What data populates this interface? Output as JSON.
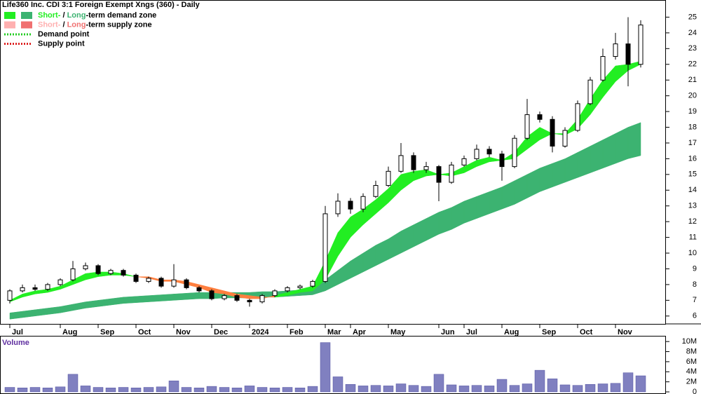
{
  "chart_data": {
    "type": "candlestick",
    "title": "Life360 Inc. CDI 3:1 Foreign Exempt Xngs (360) - Daily",
    "legend": [
      {
        "short": "Short-",
        "sep": " / ",
        "long": "Long",
        "rest": "-term demand zone",
        "colors": [
          "#22ee22",
          "#3cb371"
        ]
      },
      {
        "short": "Short-",
        "sep": " / ",
        "long": "Long",
        "rest": "-term supply zone",
        "colors": [
          "#ffb0b0",
          "#f07070"
        ]
      },
      {
        "label": "Demand point",
        "color": "#22cc22"
      },
      {
        "label": "Supply point",
        "color": "#dd2222"
      }
    ],
    "categories": [
      "Jul",
      null,
      null,
      null,
      "Aug",
      null,
      null,
      "Sep",
      null,
      null,
      "Oct",
      null,
      null,
      "Nov",
      null,
      null,
      "Dec",
      null,
      null,
      "2024",
      null,
      null,
      "Feb",
      null,
      null,
      "Mar",
      null,
      "Apr",
      null,
      null,
      "May",
      null,
      null,
      null,
      "Jun",
      null,
      "Jul",
      null,
      null,
      "Aug",
      null,
      null,
      "Sep",
      null,
      null,
      "Oct",
      null,
      null,
      "Nov",
      null,
      null
    ],
    "open": [
      7.0,
      7.6,
      7.8,
      7.7,
      8.0,
      8.3,
      9.0,
      9.2,
      8.7,
      8.9,
      8.6,
      8.2,
      8.4,
      7.9,
      8.3,
      7.8,
      7.6,
      7.1,
      7.3,
      7.0,
      6.9,
      7.3,
      7.6,
      7.8,
      7.9,
      8.2,
      12.5,
      13.3,
      12.8,
      13.6,
      14.3,
      15.2,
      16.2,
      15.3,
      15.5,
      14.5,
      15.6,
      16.0,
      16.6,
      16.3,
      15.5,
      17.3,
      18.8,
      18.5,
      16.8,
      17.8,
      19.5,
      21.0,
      22.5,
      23.3,
      22.0
    ],
    "high": [
      7.7,
      8.0,
      8.0,
      8.1,
      8.4,
      9.5,
      9.4,
      9.3,
      9.0,
      9.0,
      8.7,
      8.5,
      8.5,
      9.3,
      8.4,
      7.9,
      7.7,
      7.4,
      7.4,
      7.1,
      7.4,
      7.7,
      7.9,
      8.0,
      8.3,
      13.0,
      13.8,
      13.5,
      13.8,
      14.6,
      15.5,
      17.0,
      16.4,
      15.8,
      15.6,
      15.8,
      16.2,
      16.9,
      16.8,
      16.5,
      17.5,
      19.8,
      19.0,
      18.7,
      18.0,
      19.7,
      21.2,
      23.0,
      24.0,
      25.0,
      24.8
    ],
    "low": [
      6.8,
      7.5,
      7.6,
      7.6,
      7.9,
      8.2,
      8.9,
      8.6,
      8.6,
      8.5,
      8.1,
      8.1,
      7.8,
      7.8,
      7.7,
      7.5,
      7.0,
      7.0,
      6.9,
      6.6,
      6.8,
      7.2,
      7.5,
      7.7,
      7.8,
      8.1,
      12.3,
      12.5,
      12.6,
      13.5,
      14.2,
      15.1,
      15.1,
      15.1,
      13.3,
      14.4,
      15.5,
      15.9,
      16.1,
      14.6,
      15.4,
      17.2,
      18.3,
      16.4,
      16.7,
      17.7,
      19.4,
      20.9,
      22.3,
      20.6,
      21.8
    ],
    "close": [
      7.6,
      7.8,
      7.7,
      8.0,
      8.3,
      9.0,
      9.2,
      8.7,
      8.9,
      8.6,
      8.2,
      8.4,
      7.9,
      8.3,
      7.8,
      7.6,
      7.1,
      7.3,
      7.0,
      6.9,
      7.3,
      7.6,
      7.8,
      7.9,
      8.2,
      12.5,
      13.3,
      12.8,
      13.6,
      14.3,
      15.2,
      16.2,
      15.3,
      15.5,
      14.5,
      15.6,
      16.0,
      16.6,
      16.3,
      15.5,
      17.3,
      18.8,
      18.5,
      16.8,
      17.8,
      19.5,
      21.0,
      22.5,
      23.3,
      22.0,
      24.5
    ],
    "short_fast": [
      7.0,
      7.4,
      7.6,
      7.7,
      7.9,
      8.3,
      8.7,
      8.8,
      8.8,
      8.7,
      8.5,
      8.4,
      8.2,
      8.2,
      8.0,
      7.8,
      7.5,
      7.4,
      7.2,
      7.1,
      7.1,
      7.3,
      7.5,
      7.7,
      7.9,
      9.5,
      11.3,
      12.3,
      12.8,
      13.4,
      14.1,
      15.0,
      15.2,
      15.3,
      15.0,
      15.1,
      15.5,
      15.9,
      16.1,
      15.9,
      16.4,
      17.4,
      18.0,
      17.6,
      17.6,
      18.5,
      19.8,
      21.0,
      21.9,
      22.0,
      22.2
    ],
    "short_slow": [
      6.9,
      7.2,
      7.4,
      7.5,
      7.7,
      8.0,
      8.3,
      8.5,
      8.6,
      8.6,
      8.5,
      8.5,
      8.3,
      8.3,
      8.2,
      8.0,
      7.8,
      7.6,
      7.4,
      7.3,
      7.2,
      7.2,
      7.3,
      7.5,
      7.6,
      8.3,
      9.8,
      11.0,
      11.8,
      12.5,
      13.2,
      14.0,
      14.6,
      14.9,
      15.0,
      14.9,
      15.1,
      15.5,
      15.8,
      15.9,
      16.0,
      16.6,
      17.2,
      17.6,
      17.5,
      17.9,
      18.8,
      19.9,
      20.9,
      21.6,
      22.0
    ],
    "long_upper": [
      6.2,
      6.3,
      6.4,
      6.5,
      6.6,
      6.75,
      6.9,
      7.0,
      7.1,
      7.2,
      7.25,
      7.3,
      7.35,
      7.4,
      7.45,
      7.5,
      7.5,
      7.5,
      7.5,
      7.5,
      7.55,
      7.55,
      7.6,
      7.65,
      7.75,
      8.3,
      8.9,
      9.5,
      10.0,
      10.5,
      10.9,
      11.4,
      11.8,
      12.2,
      12.6,
      12.9,
      13.3,
      13.6,
      13.9,
      14.2,
      14.6,
      15.0,
      15.4,
      15.7,
      16.0,
      16.4,
      16.8,
      17.2,
      17.6,
      18.0,
      18.3
    ],
    "long_lower": [
      5.8,
      5.9,
      6.0,
      6.1,
      6.2,
      6.35,
      6.5,
      6.6,
      6.7,
      6.8,
      6.85,
      6.9,
      6.95,
      7.0,
      7.05,
      7.1,
      7.1,
      7.15,
      7.15,
      7.15,
      7.2,
      7.2,
      7.25,
      7.3,
      7.35,
      7.6,
      8.0,
      8.4,
      8.8,
      9.2,
      9.6,
      10.0,
      10.4,
      10.8,
      11.2,
      11.5,
      11.9,
      12.2,
      12.5,
      12.8,
      13.1,
      13.5,
      13.9,
      14.2,
      14.5,
      14.8,
      15.1,
      15.4,
      15.7,
      16.0,
      16.2
    ],
    "zone_colors": {
      "demand": "#22ee22",
      "supply": "#ff7f3f",
      "long": "#3cb371"
    },
    "ylim": [
      5.5,
      26
    ],
    "yticks": [
      6,
      7,
      8,
      9,
      10,
      11,
      12,
      13,
      14,
      15,
      16,
      17,
      18,
      19,
      20,
      21,
      22,
      23,
      24,
      25
    ],
    "volume_title": "Volume",
    "volume": [
      900000,
      800000,
      900000,
      800000,
      1000000,
      3500000,
      1200000,
      900000,
      800000,
      900000,
      800000,
      900000,
      1000000,
      2200000,
      900000,
      800000,
      1100000,
      900000,
      800000,
      1200000,
      900000,
      800000,
      900000,
      800000,
      1100000,
      9800000,
      3000000,
      1500000,
      1200000,
      1300000,
      1200000,
      1600000,
      1300000,
      1100000,
      3500000,
      1400000,
      1200000,
      1300000,
      1200000,
      2500000,
      1300000,
      1600000,
      4300000,
      2600000,
      1400000,
      1300000,
      1500000,
      1600000,
      1700000,
      3800000,
      3200000
    ],
    "volume_color": "#8080c0",
    "vlim": [
      0,
      11000000
    ],
    "vticks": [
      {
        "value": 0,
        "label": "0"
      },
      {
        "value": 2000000,
        "label": "2M"
      },
      {
        "value": 4000000,
        "label": "4M"
      },
      {
        "value": 6000000,
        "label": "6M"
      },
      {
        "value": 8000000,
        "label": "8M"
      },
      {
        "value": 10000000,
        "label": "10M"
      }
    ]
  }
}
